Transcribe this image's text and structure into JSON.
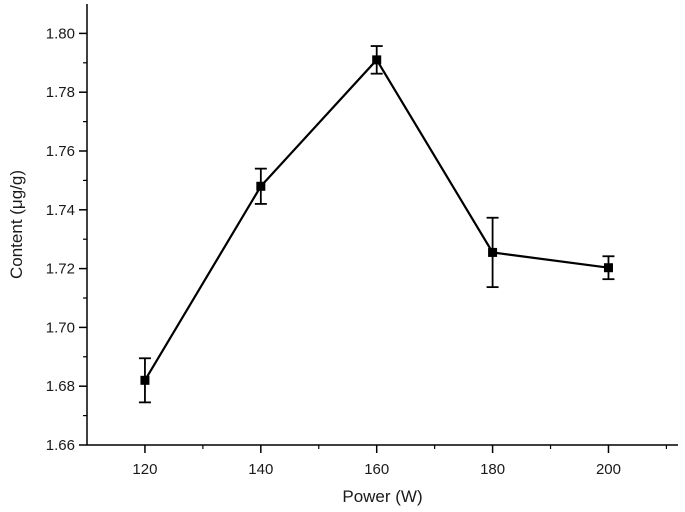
{
  "chart_data": {
    "type": "line",
    "xlabel": "Power (W)",
    "ylabel": "Content (μg/g)",
    "xlim": [
      110,
      212
    ],
    "ylim": [
      1.66,
      1.81
    ],
    "x_ticks": [
      120,
      140,
      160,
      180,
      200
    ],
    "x_minor_ticks": [
      130,
      150,
      170,
      190,
      210
    ],
    "y_ticks": [
      1.66,
      1.68,
      1.7,
      1.72,
      1.74,
      1.76,
      1.78,
      1.8
    ],
    "y_tick_labels": [
      "1.66",
      "1.68",
      "1.70",
      "1.72",
      "1.74",
      "1.76",
      "1.78",
      "1.80"
    ],
    "x_tick_labels": [
      "120",
      "140",
      "160",
      "180",
      "200"
    ],
    "grid": false,
    "series": [
      {
        "x": [
          120,
          140,
          160,
          180,
          200
        ],
        "y": [
          1.682,
          1.748,
          1.791,
          1.7255,
          1.7203
        ],
        "error": [
          0.0075,
          0.006,
          0.0047,
          0.0118,
          0.0039
        ],
        "marker": "square",
        "color": "#000000"
      }
    ]
  }
}
